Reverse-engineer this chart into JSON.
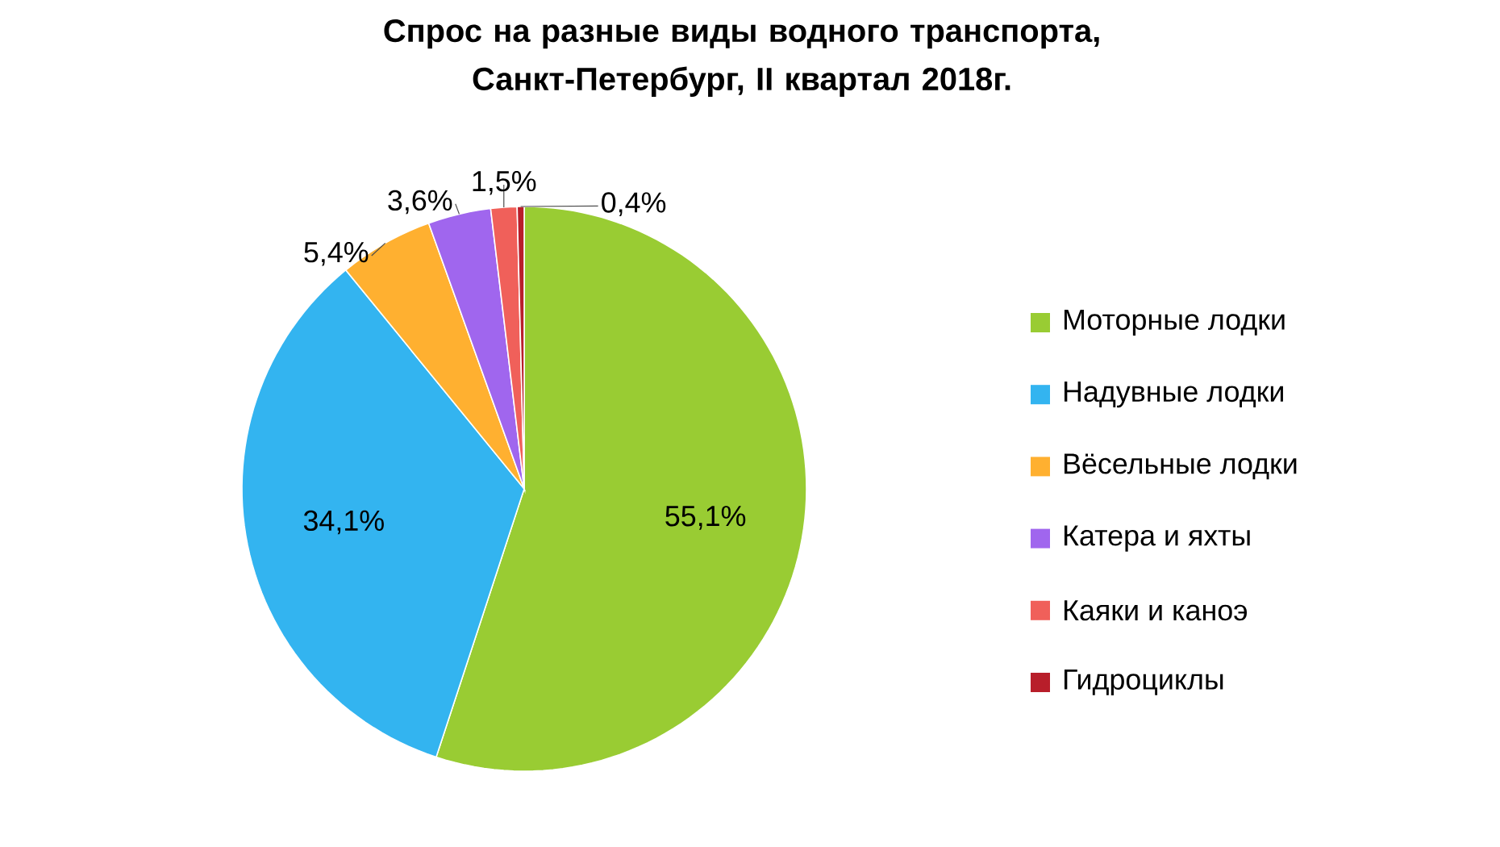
{
  "chart_data": {
    "type": "pie",
    "title": "Спрос на разные виды водного транспорта,\nСанкт-Петербург, II квартал 2018г.",
    "categories": [
      "Моторные лодки",
      "Надувные лодки",
      "Вёсельные лодки",
      "Катера и яхты",
      "Каяки и каноэ",
      "Гидроциклы"
    ],
    "values": [
      55.1,
      34.1,
      5.4,
      3.6,
      1.5,
      0.4
    ],
    "value_labels": [
      "55,1%",
      "34,1%",
      "5,4%",
      "3,6%",
      "1,5%",
      "0,4%"
    ],
    "colors": [
      "#99cc33",
      "#33b4f0",
      "#ffb030",
      "#a066ee",
      "#f0605a",
      "#b81e2a"
    ],
    "legend": "right"
  }
}
